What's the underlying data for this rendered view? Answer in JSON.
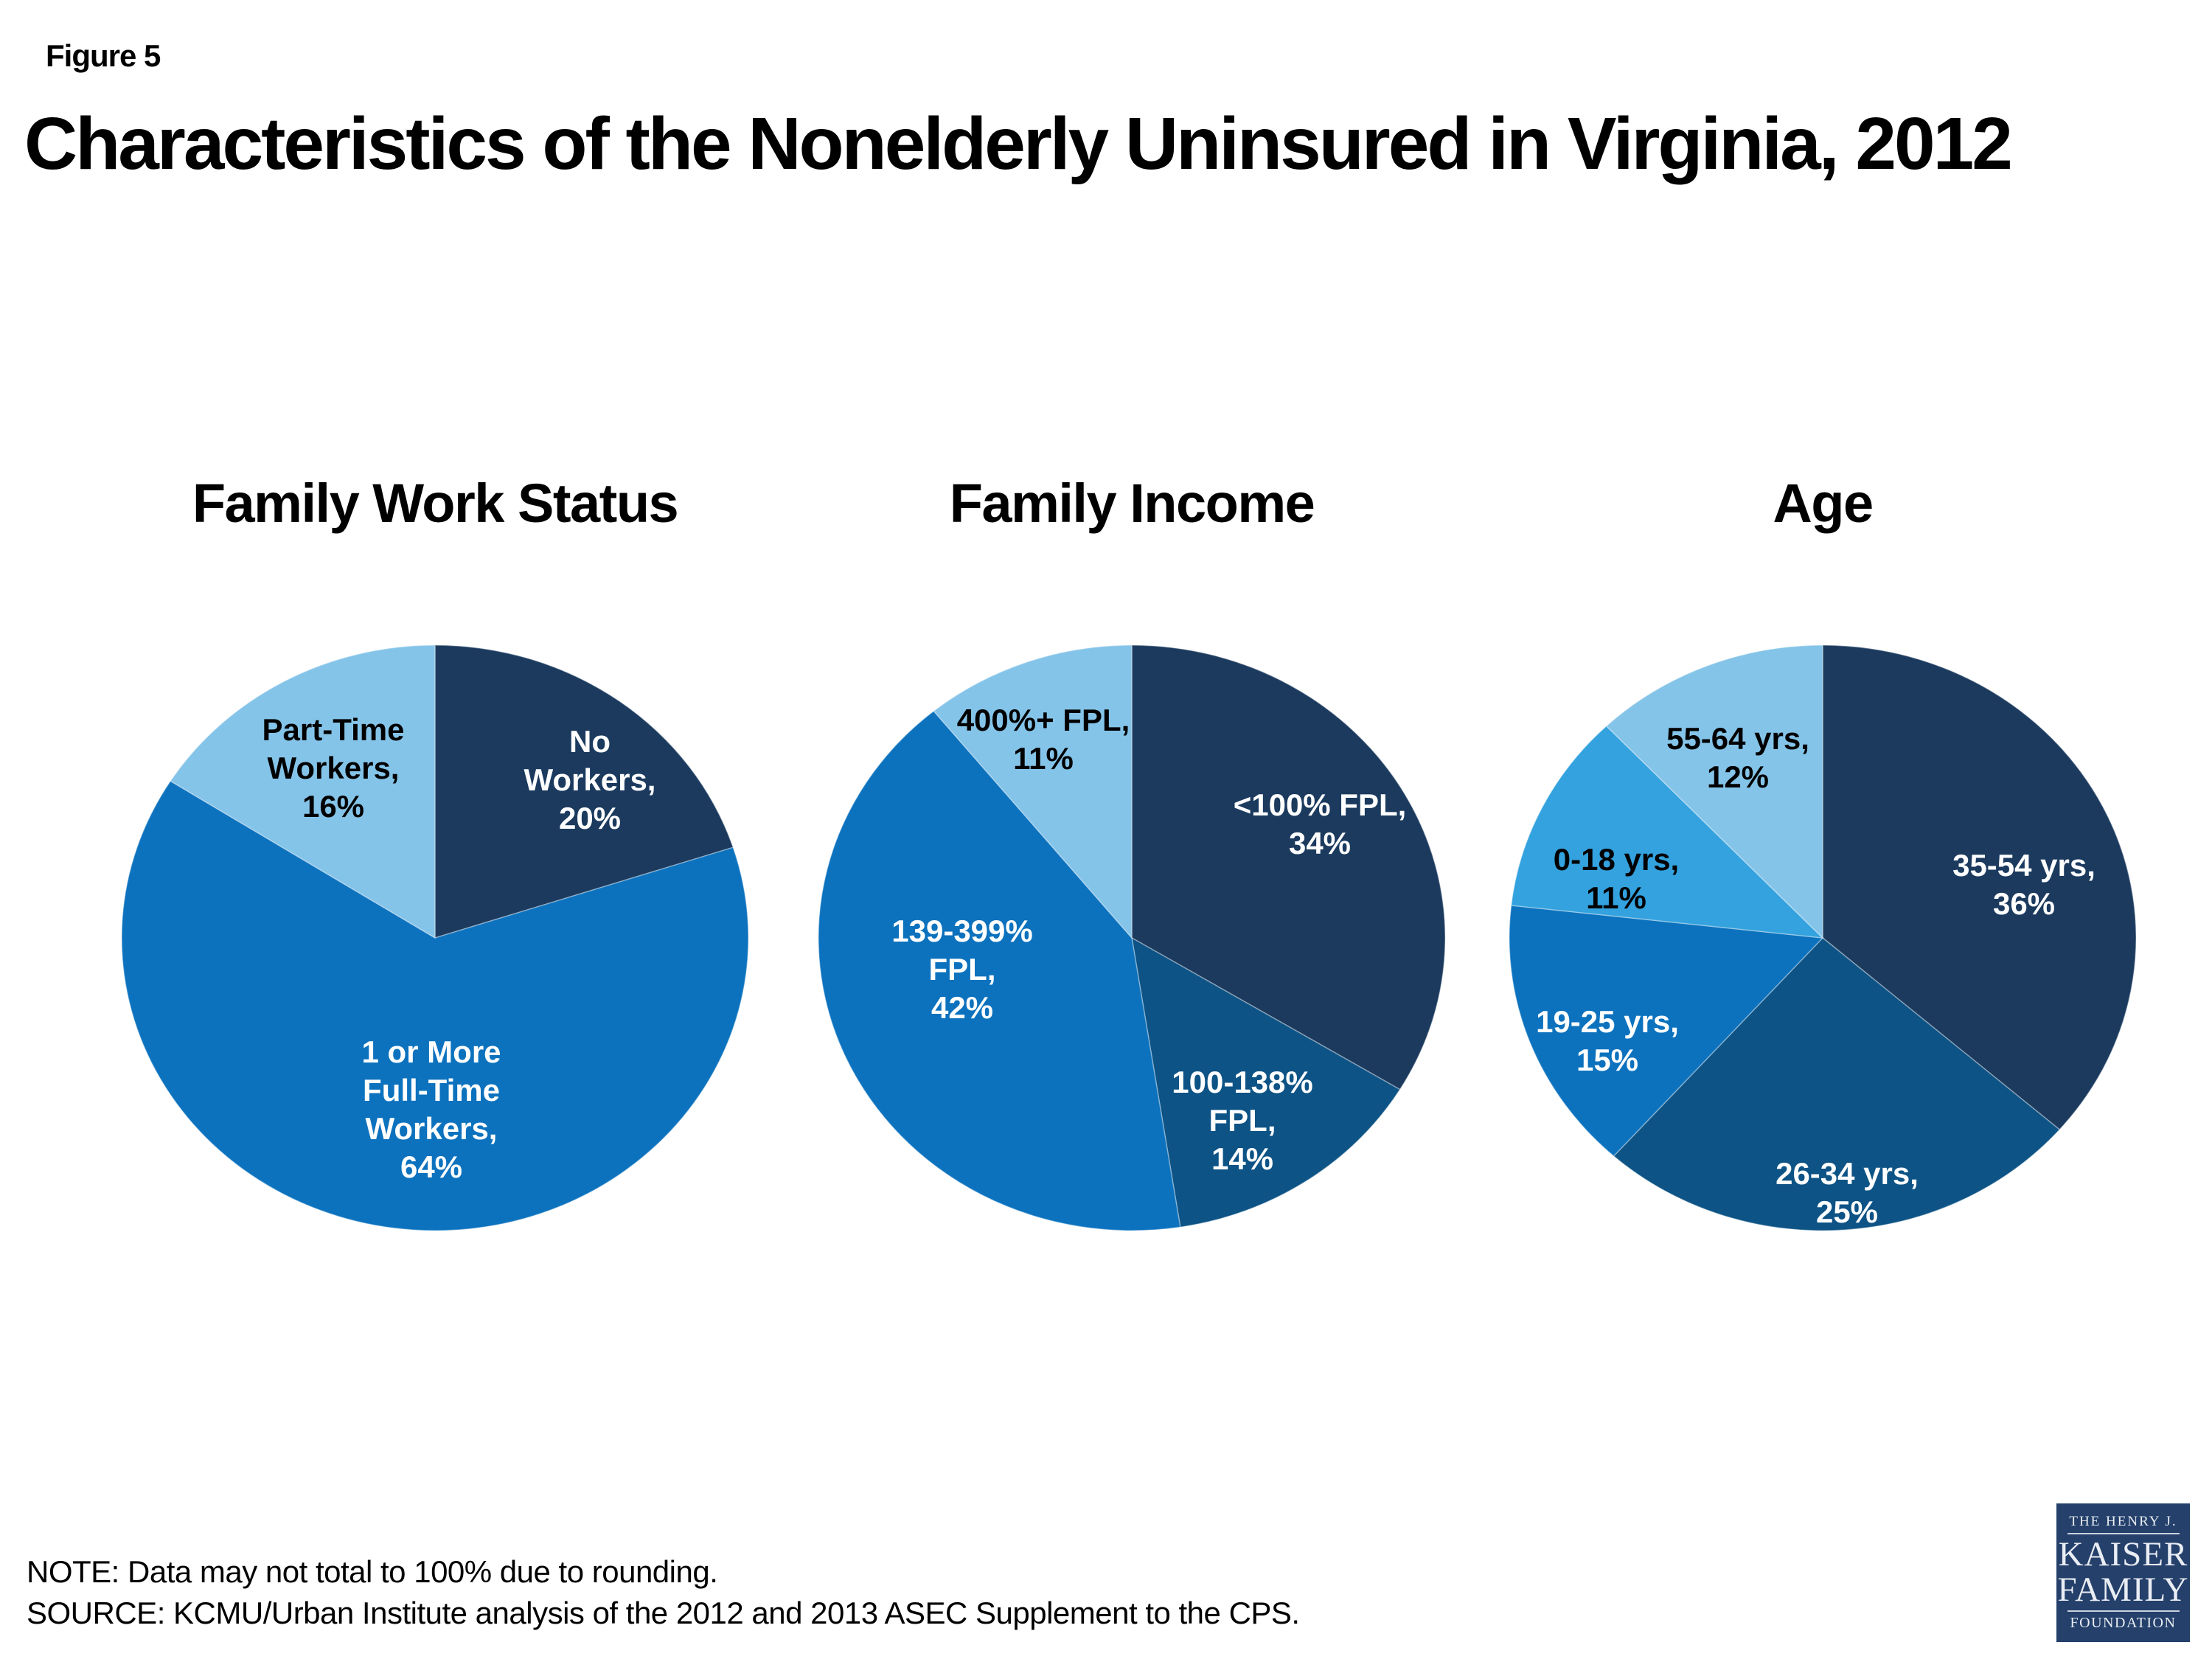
{
  "figure_label": "Figure 5",
  "title": "Characteristics of the Nonelderly Uninsured in Virginia, 2012",
  "note": "NOTE: Data may not total to 100% due to rounding.",
  "source": "SOURCE: KCMU/Urban Institute analysis of the 2012 and 2013 ASEC Supplement to the CPS.",
  "palette": {
    "navy": "#1B3A5E",
    "dark_blue": "#0D5385",
    "blue": "#0C72BE",
    "bright_blue": "#33A2DE",
    "light_blue": "#85C4E9"
  },
  "logo": {
    "top_text": "THE HENRY J.",
    "name_line1": "KAISER",
    "name_line2": "FAMILY",
    "bottom_text": "FOUNDATION",
    "bg_color": "#24406B"
  },
  "chart_data": [
    {
      "type": "pie",
      "title": "Family Work Status",
      "start_angle_deg": 0,
      "direction": "clockwise",
      "slices": [
        {
          "category": "No Workers",
          "value": 20,
          "unit": "%",
          "color": "#1B3A5E",
          "label": "No\nWorkers,\n20%",
          "label_color": "#FFFFFF"
        },
        {
          "category": "1 or More Full-Time Workers",
          "value": 64,
          "unit": "%",
          "color": "#0C72BE",
          "label": "1 or More\nFull-Time\nWorkers,\n64%",
          "label_color": "#FFFFFF"
        },
        {
          "category": "Part-Time Workers",
          "value": 16,
          "unit": "%",
          "color": "#85C4E9",
          "label": "Part-Time\nWorkers,\n16%",
          "label_color": "#000000"
        }
      ]
    },
    {
      "type": "pie",
      "title": "Family Income",
      "start_angle_deg": 0,
      "direction": "clockwise",
      "slices": [
        {
          "category": "<100% FPL",
          "value": 34,
          "unit": "%",
          "color": "#1B3A5E",
          "label": "<100% FPL,\n34%",
          "label_color": "#FFFFFF"
        },
        {
          "category": "100-138% FPL",
          "value": 14,
          "unit": "%",
          "color": "#0D5385",
          "label": "100-138%\nFPL,\n14%",
          "label_color": "#FFFFFF"
        },
        {
          "category": "139-399% FPL",
          "value": 42,
          "unit": "%",
          "color": "#0C72BE",
          "label": "139-399%\nFPL,\n42%",
          "label_color": "#FFFFFF"
        },
        {
          "category": "400%+ FPL",
          "value": 11,
          "unit": "%",
          "color": "#85C4E9",
          "label": "400%+ FPL,\n11%",
          "label_color": "#000000"
        }
      ]
    },
    {
      "type": "pie",
      "title": "Age",
      "start_angle_deg": 0,
      "direction": "clockwise",
      "slices": [
        {
          "category": "35-54 yrs",
          "value": 36,
          "unit": "%",
          "color": "#1B3A5E",
          "label": "35-54 yrs,\n36%",
          "label_color": "#FFFFFF"
        },
        {
          "category": "26-34 yrs",
          "value": 25,
          "unit": "%",
          "color": "#0D5385",
          "label": "26-34 yrs,\n25%",
          "label_color": "#FFFFFF"
        },
        {
          "category": "19-25 yrs",
          "value": 15,
          "unit": "%",
          "color": "#0C72BE",
          "label": "19-25 yrs,\n15%",
          "label_color": "#FFFFFF"
        },
        {
          "category": "0-18 yrs",
          "value": 11,
          "unit": "%",
          "color": "#33A2DE",
          "label": "0-18 yrs,\n11%",
          "label_color": "#000000"
        },
        {
          "category": "55-64 yrs",
          "value": 12,
          "unit": "%",
          "color": "#85C4E9",
          "label": "55-64 yrs,\n12%",
          "label_color": "#000000"
        }
      ]
    }
  ]
}
